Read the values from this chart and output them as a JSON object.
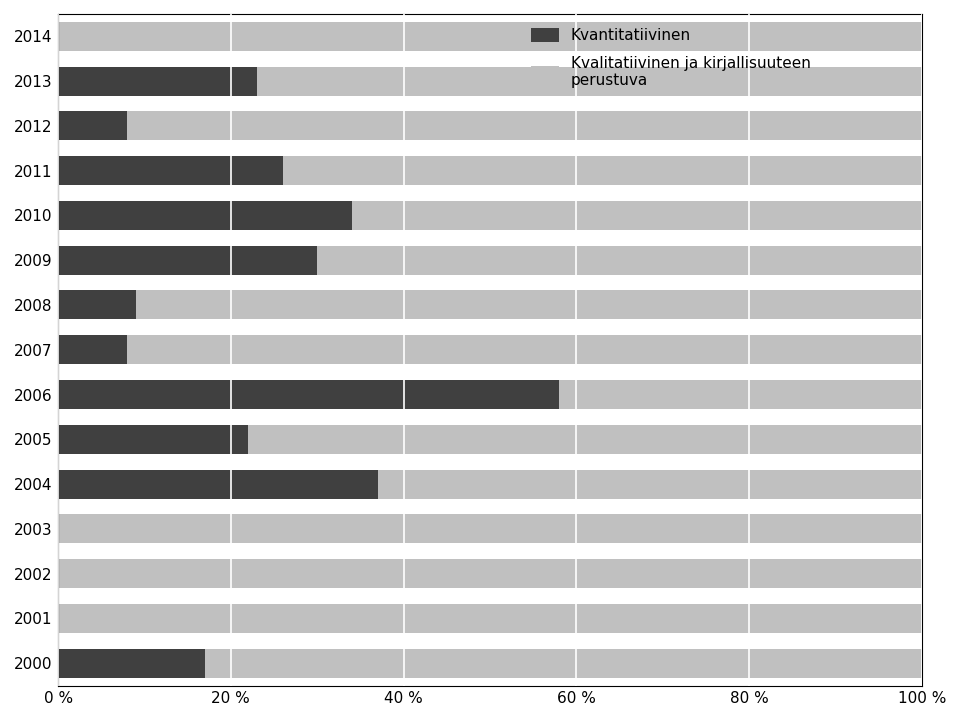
{
  "years": [
    2000,
    2001,
    2002,
    2003,
    2004,
    2005,
    2006,
    2007,
    2008,
    2009,
    2010,
    2011,
    2012,
    2013,
    2014
  ],
  "kvantitatiivinen": [
    17,
    0,
    0,
    0,
    37,
    22,
    58,
    8,
    9,
    30,
    34,
    26,
    8,
    23,
    0
  ],
  "kvalitatiivinen": [
    83,
    100,
    100,
    100,
    63,
    78,
    42,
    92,
    91,
    70,
    66,
    74,
    92,
    77,
    100
  ],
  "color_kvant": "#404040",
  "color_kval": "#c0c0c0",
  "color_kval_hatch_bg": "#d8d8d8",
  "label_kvant": "Kvantitatiivinen",
  "label_kval": "Kvalitatiivinen ja kirjallisuuteen\nperustuva",
  "xlim": [
    0,
    100
  ],
  "xticks": [
    0,
    20,
    40,
    60,
    80,
    100
  ],
  "xtick_labels": [
    "0 %",
    "20 %",
    "40 %",
    "60 %",
    "80 %",
    "100 %"
  ],
  "bar_height": 0.65,
  "figsize": [
    9.6,
    7.2
  ],
  "dpi": 100,
  "background_color": "#ffffff",
  "grid_color": "#ffffff",
  "legend_fontsize": 11,
  "tick_fontsize": 11,
  "year_fontsize": 11
}
